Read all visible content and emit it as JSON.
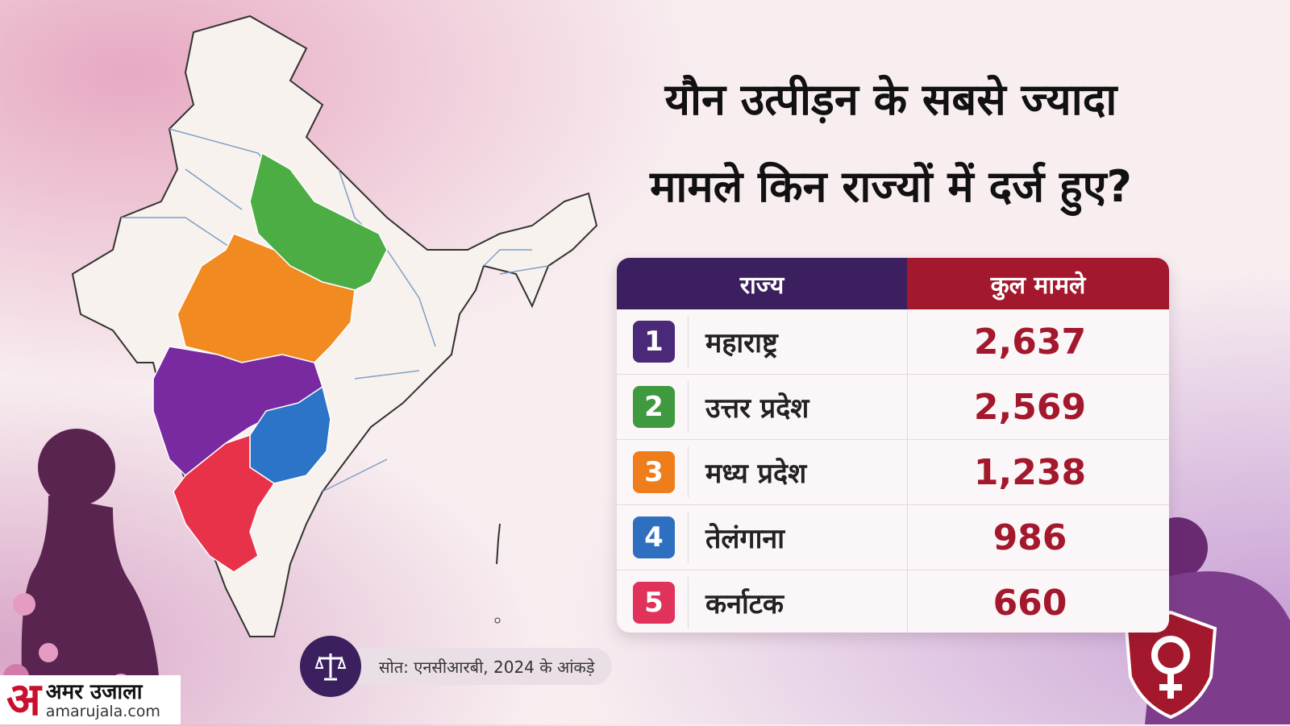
{
  "title": {
    "line1": "यौन उत्पीड़न के सबसे ज्यादा",
    "line2": "मामले किन राज्यों में दर्ज हुए?"
  },
  "table": {
    "header_state": "राज्य",
    "header_cases": "कुल मामले"
  },
  "chart_data": {
    "type": "table",
    "title": "यौन उत्पीड़न के सबसे ज्यादा मामले किन राज्यों में दर्ज हुए?",
    "columns": [
      "राज्य",
      "कुल मामले"
    ],
    "rows": [
      {
        "rank": "1",
        "state": "महाराष्ट्र",
        "cases_label": "2,637",
        "cases": 2637,
        "color": "#4a2a78"
      },
      {
        "rank": "2",
        "state": "उत्तर प्रदेश",
        "cases_label": "2,569",
        "cases": 2569,
        "color": "#3f9a3f"
      },
      {
        "rank": "3",
        "state": "मध्य प्रदेश",
        "cases_label": "1,238",
        "cases": 1238,
        "color": "#f07d1c"
      },
      {
        "rank": "4",
        "state": "तेलंगाना",
        "cases_label": "986",
        "cases": 986,
        "color": "#2f6fbf"
      },
      {
        "rank": "5",
        "state": "कर्नाटक",
        "cases_label": "660",
        "cases": 660,
        "color": "#e0325a"
      }
    ]
  },
  "map_colors": {
    "maharashtra": "#7a2aa0",
    "uttar_pradesh": "#4cad45",
    "madhya_pradesh": "#f28a22",
    "telangana": "#2b74c7",
    "karnataka": "#e8324a",
    "other": "#f7f2ee",
    "border": "#7ea0c6"
  },
  "source": "सोत: एनसीआरबी, 2024 के आंकड़े",
  "logo": {
    "mark": "अ",
    "name": "अमर उजाला",
    "url": "amarujala.com"
  }
}
